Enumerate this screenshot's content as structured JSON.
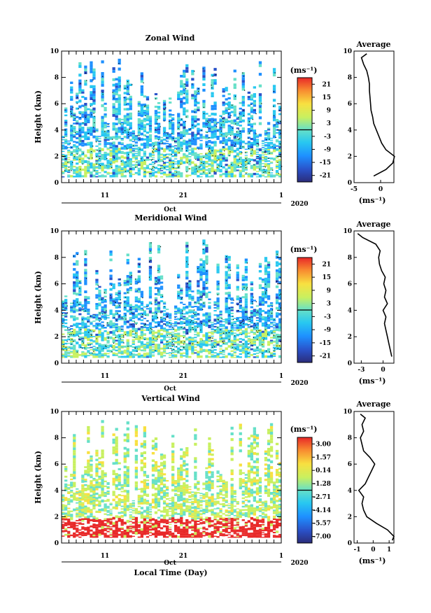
{
  "chart_data": [
    {
      "type": "heatmap",
      "title": "Zonal Wind",
      "ylabel": "Height (km)",
      "ylim": [
        0,
        10
      ],
      "yticks": [
        "0",
        "2",
        "4",
        "6",
        "8",
        "10"
      ],
      "xticks": [
        "11",
        "21",
        "1"
      ],
      "xunder_label": "Oct",
      "year_label": "2020",
      "unit": "(ms⁻¹)",
      "colorbar_ticks": [
        "21",
        "15",
        "9",
        "3",
        "-3",
        "-9",
        "-15",
        "-21"
      ],
      "colorbar_range": [
        -24,
        24
      ],
      "profile": {
        "title": "Average",
        "xticks": [
          "-5",
          "0"
        ],
        "xlim": [
          -5,
          2.5
        ],
        "xlabel": "(ms⁻¹)",
        "heights": [
          0.5,
          1,
          1.5,
          2,
          2.5,
          3,
          3.5,
          4,
          4.5,
          5,
          5.5,
          6,
          6.5,
          7,
          7.5,
          8,
          8.5,
          9,
          9.5,
          9.8
        ],
        "values": [
          -1.3,
          1.0,
          2.3,
          2.6,
          1.0,
          0.2,
          -0.3,
          -0.8,
          -1.3,
          -1.5,
          -1.8,
          -1.9,
          -2.0,
          -2.1,
          -2.1,
          -2.3,
          -2.6,
          -3.2,
          -3.6,
          -2.6
        ]
      }
    },
    {
      "type": "heatmap",
      "title": "Meridional Wind",
      "ylabel": "Height (km)",
      "ylim": [
        0,
        10
      ],
      "yticks": [
        "0",
        "2",
        "4",
        "6",
        "8",
        "10"
      ],
      "xticks": [
        "11",
        "21",
        "1"
      ],
      "xunder_label": "Oct",
      "year_label": "2020",
      "unit": "(ms⁻¹)",
      "colorbar_ticks": [
        "21",
        "15",
        "9",
        "3",
        "-3",
        "-9",
        "-15",
        "-21"
      ],
      "colorbar_range": [
        -24,
        24
      ],
      "profile": {
        "title": "Average",
        "xticks": [
          "-3",
          "0"
        ],
        "xlim": [
          -4,
          1.5
        ],
        "xlabel": "(ms⁻¹)",
        "heights": [
          0.5,
          1,
          1.5,
          2,
          2.5,
          3,
          3.5,
          4,
          4.5,
          5,
          5.5,
          6,
          6.5,
          7,
          7.5,
          8,
          8.5,
          9,
          9.5,
          9.8
        ],
        "values": [
          1.2,
          1.0,
          0.8,
          0.6,
          0.4,
          0.2,
          0.4,
          0.0,
          0.6,
          0.2,
          0.4,
          0.1,
          0.3,
          -0.2,
          -0.5,
          -0.6,
          -0.4,
          -1.0,
          -2.8,
          -3.5
        ]
      }
    },
    {
      "type": "heatmap",
      "title": "Vertical Wind",
      "ylabel": "Height (km)",
      "xlabel": "Local Time (Day)",
      "ylim": [
        0,
        10
      ],
      "yticks": [
        "0",
        "2",
        "4",
        "6",
        "8",
        "10"
      ],
      "xticks": [
        "11",
        "21",
        "1"
      ],
      "xunder_label": "Oct",
      "year_label": "2020",
      "unit": "(ms⁻¹)",
      "colorbar_ticks": [
        "3.00",
        "1.57",
        "0.14",
        "-1.28",
        "-2.71",
        "-4.14",
        "-5.57",
        "-7.00"
      ],
      "colorbar_range": [
        -8,
        4
      ],
      "profile": {
        "title": "Average",
        "xticks": [
          "-1",
          "0",
          "1"
        ],
        "xlim": [
          -1.2,
          1.3
        ],
        "xlabel": "(ms⁻¹)",
        "heights": [
          0.2,
          0.5,
          1,
          1.5,
          2,
          2.5,
          3,
          3.5,
          4,
          4.5,
          5,
          5.5,
          6,
          6.5,
          7,
          7.5,
          8,
          8.5,
          9,
          9.5,
          9.8
        ],
        "values": [
          1.2,
          1.3,
          0.9,
          0.2,
          -0.4,
          -0.6,
          -0.7,
          -0.6,
          -0.9,
          -0.5,
          -0.3,
          -0.1,
          0.1,
          -0.2,
          -0.6,
          -0.7,
          -0.8,
          -0.6,
          -0.7,
          -0.5,
          -0.8
        ]
      }
    }
  ]
}
